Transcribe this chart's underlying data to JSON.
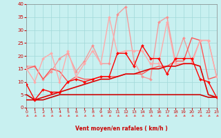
{
  "xlabel": "Vent moyen/en rafales ( km/h )",
  "ylim": [
    0,
    40
  ],
  "xlim": [
    0,
    23
  ],
  "yticks": [
    0,
    5,
    10,
    15,
    20,
    25,
    30,
    35,
    40
  ],
  "xticks": [
    0,
    1,
    2,
    3,
    4,
    5,
    6,
    7,
    8,
    9,
    10,
    11,
    12,
    13,
    14,
    15,
    16,
    17,
    18,
    19,
    20,
    21,
    22,
    23
  ],
  "bg_color": "#c8f0f0",
  "grid_color": "#a0d8d8",
  "arrow_color": "#e06060",
  "lines": [
    {
      "x": [
        0,
        1,
        2,
        3,
        4,
        5,
        6,
        7,
        8,
        9,
        10,
        11,
        12,
        13,
        14,
        15,
        16,
        17,
        18,
        19,
        20,
        21,
        22,
        23
      ],
      "y": [
        9,
        3,
        7,
        6,
        6,
        10,
        11,
        10,
        11,
        12,
        12,
        21,
        21,
        16,
        24,
        19,
        19,
        13,
        19,
        19,
        19,
        11,
        10,
        4
      ],
      "color": "#ff0000",
      "lw": 1.0,
      "marker": "D",
      "markersize": 2.0,
      "alpha": 1.0,
      "zorder": 5
    },
    {
      "x": [
        0,
        1,
        2,
        3,
        4,
        5,
        6,
        7,
        8,
        9,
        10,
        11,
        12,
        13,
        14,
        15,
        16,
        17,
        18,
        19,
        20,
        21,
        22,
        23
      ],
      "y": [
        3,
        3,
        4,
        5,
        6,
        7,
        8,
        9,
        10,
        11,
        11,
        12,
        13,
        13,
        14,
        15,
        15,
        16,
        16,
        17,
        17,
        16,
        5,
        4
      ],
      "color": "#dd0000",
      "lw": 1.2,
      "marker": null,
      "markersize": 0,
      "alpha": 1.0,
      "zorder": 4
    },
    {
      "x": [
        0,
        1,
        2,
        3,
        4,
        5,
        6,
        7,
        8,
        9,
        10,
        11,
        12,
        13,
        14,
        15,
        16,
        17,
        18,
        19,
        20,
        21,
        22,
        23
      ],
      "y": [
        5,
        3,
        3,
        4,
        5,
        5,
        5,
        5,
        5,
        5,
        5,
        5,
        5,
        5,
        5,
        5,
        5,
        5,
        5,
        5,
        5,
        5,
        4,
        4
      ],
      "color": "#cc0000",
      "lw": 1.2,
      "marker": null,
      "markersize": 0,
      "alpha": 1.0,
      "zorder": 4
    },
    {
      "x": [
        0,
        1,
        2,
        3,
        4,
        5,
        6,
        7,
        8,
        9,
        10,
        11,
        12,
        13,
        14,
        15,
        16,
        17,
        18,
        19,
        20,
        21,
        22,
        23
      ],
      "y": [
        15,
        16,
        11,
        15,
        14,
        10,
        12,
        11,
        11,
        12,
        12,
        12,
        13,
        13,
        13,
        15,
        16,
        16,
        18,
        18,
        27,
        26,
        11,
        12
      ],
      "color": "#ff5555",
      "lw": 1.0,
      "marker": null,
      "markersize": 0,
      "alpha": 1.0,
      "zorder": 3
    },
    {
      "x": [
        0,
        1,
        2,
        3,
        4,
        5,
        6,
        7,
        8,
        9,
        10,
        11,
        12,
        13,
        14,
        15,
        16,
        17,
        18,
        19,
        20,
        21,
        22,
        23
      ],
      "y": [
        15,
        10,
        19,
        21,
        10,
        22,
        12,
        17,
        22,
        17,
        35,
        21,
        22,
        22,
        22,
        17,
        17,
        33,
        17,
        17,
        17,
        26,
        26,
        12
      ],
      "color": "#ffaaaa",
      "lw": 1.0,
      "marker": "D",
      "markersize": 2.0,
      "alpha": 1.0,
      "zorder": 3
    },
    {
      "x": [
        0,
        1,
        2,
        3,
        4,
        5,
        6,
        7,
        8,
        9,
        10,
        11,
        12,
        13,
        14,
        15,
        16,
        17,
        18,
        19,
        20,
        21,
        22,
        23
      ],
      "y": [
        16,
        16,
        11,
        14,
        19,
        21,
        14,
        18,
        24,
        17,
        17,
        36,
        39,
        18,
        12,
        11,
        33,
        35,
        18,
        27,
        18,
        26,
        26,
        12
      ],
      "color": "#ff8888",
      "lw": 1.0,
      "marker": "D",
      "markersize": 2.0,
      "alpha": 0.8,
      "zorder": 2
    }
  ]
}
